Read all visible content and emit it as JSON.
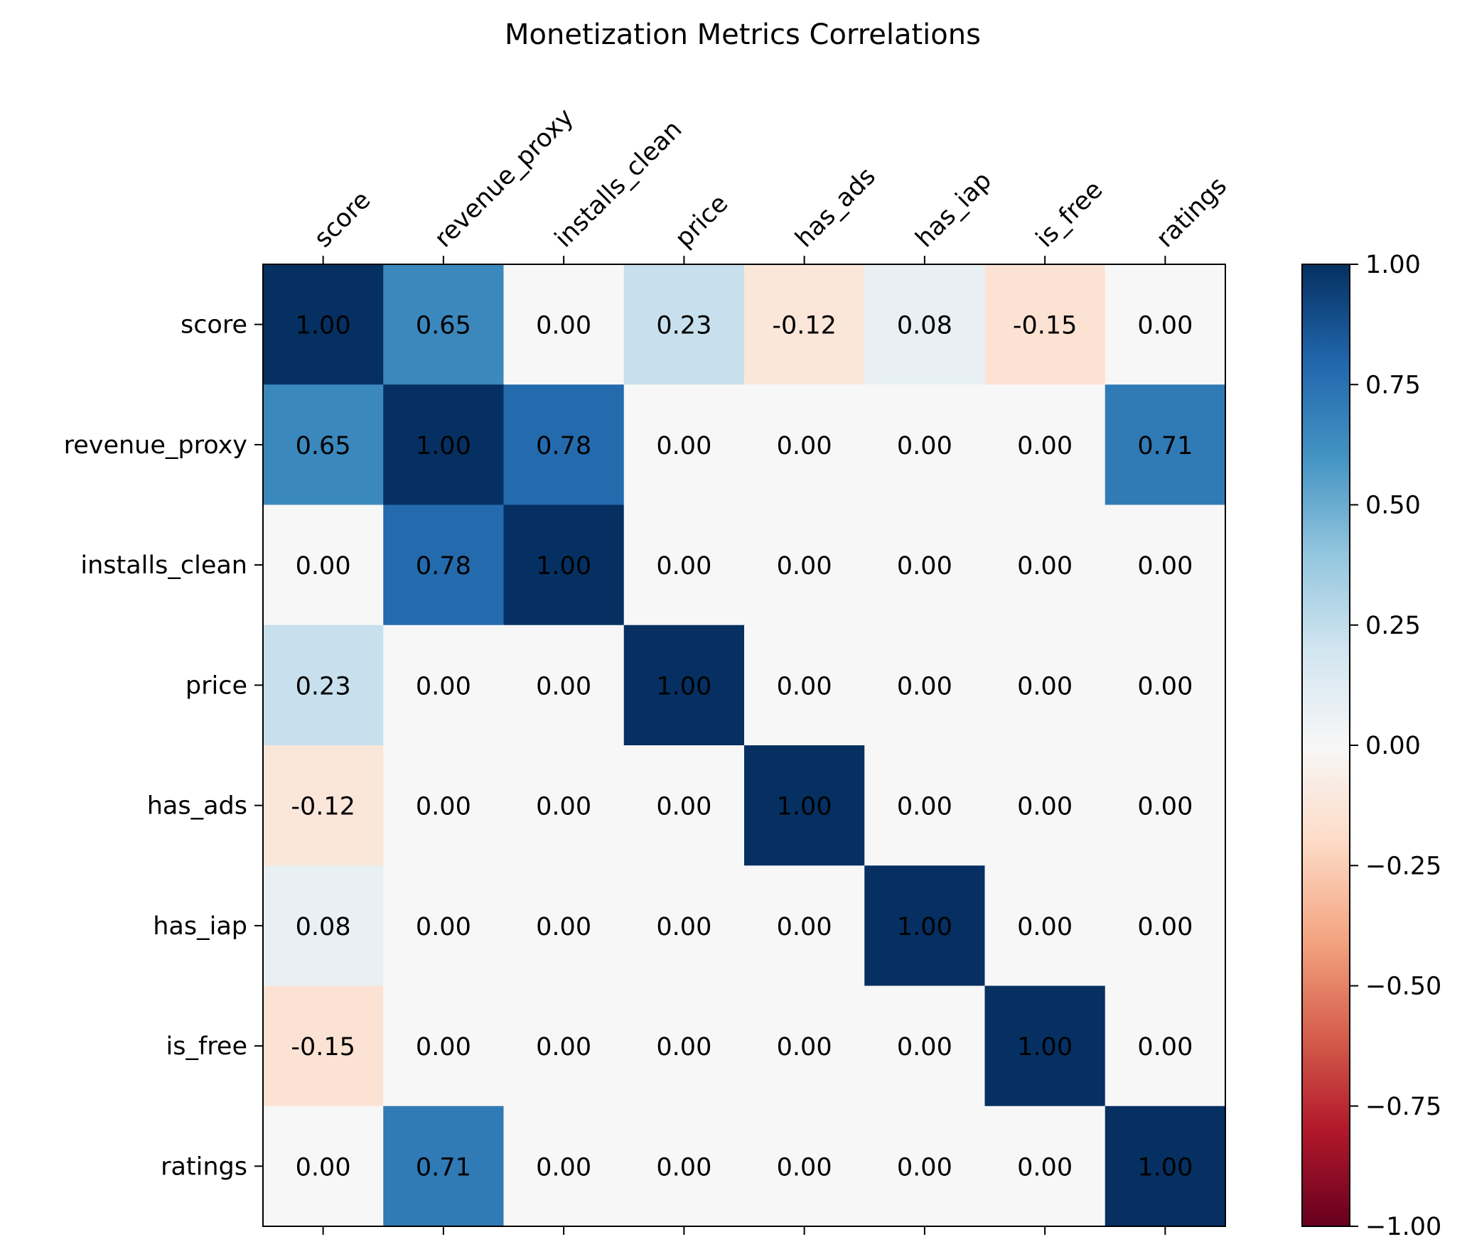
{
  "chart_data": {
    "type": "heatmap",
    "title": "Monetization Metrics Correlations",
    "xlabel": "",
    "ylabel": "",
    "x_labels": [
      "score",
      "revenue_proxy",
      "installs_clean",
      "price",
      "has_ads",
      "has_iap",
      "is_free",
      "ratings"
    ],
    "y_labels": [
      "score",
      "revenue_proxy",
      "installs_clean",
      "price",
      "has_ads",
      "has_iap",
      "is_free",
      "ratings"
    ],
    "values": [
      [
        1.0,
        0.65,
        0.0,
        0.23,
        -0.12,
        0.08,
        -0.15,
        0.0
      ],
      [
        0.65,
        1.0,
        0.78,
        0.0,
        0.0,
        0.0,
        0.0,
        0.71
      ],
      [
        0.0,
        0.78,
        1.0,
        0.0,
        0.0,
        0.0,
        0.0,
        0.0
      ],
      [
        0.23,
        0.0,
        0.0,
        1.0,
        0.0,
        0.0,
        0.0,
        0.0
      ],
      [
        -0.12,
        0.0,
        0.0,
        0.0,
        1.0,
        0.0,
        0.0,
        0.0
      ],
      [
        0.08,
        0.0,
        0.0,
        0.0,
        0.0,
        1.0,
        0.0,
        0.0
      ],
      [
        -0.15,
        0.0,
        0.0,
        0.0,
        0.0,
        0.0,
        1.0,
        0.0
      ],
      [
        0.0,
        0.71,
        0.0,
        0.0,
        0.0,
        0.0,
        0.0,
        1.0
      ]
    ],
    "colormap": "RdBu",
    "color_range": [
      -1.0,
      1.0
    ],
    "colorbar_ticks": [
      "1.00",
      "0.75",
      "0.50",
      "0.25",
      "0.00",
      "−0.25",
      "−0.50",
      "−0.75",
      "−1.00"
    ],
    "x_tick_position": "top",
    "grid": false,
    "legend": "colorbar-right"
  }
}
